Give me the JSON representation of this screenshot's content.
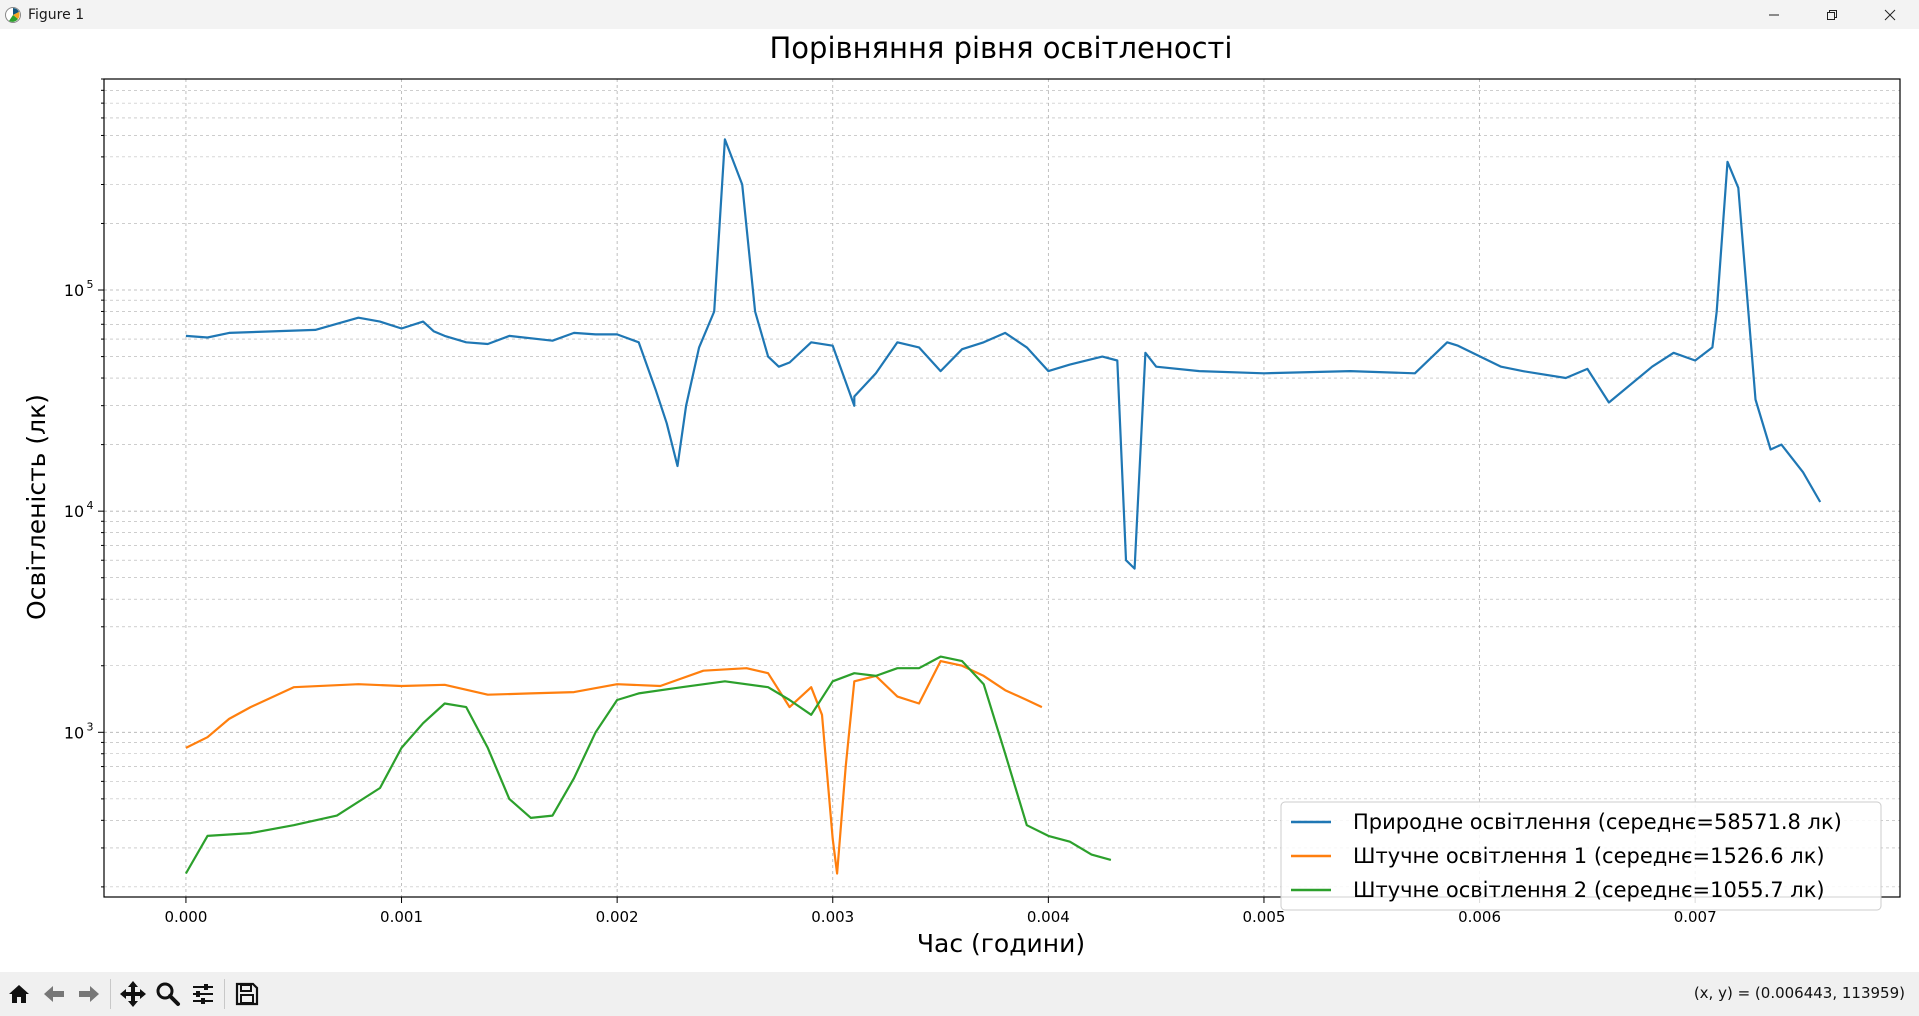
{
  "window": {
    "title": "Figure 1"
  },
  "toolbar": {
    "buttons": [
      "home-icon",
      "back-icon",
      "forward-icon",
      "pan-icon",
      "zoom-icon",
      "configure-icon",
      "save-icon"
    ],
    "coords_text": "(x, y) = (0.006443, 113959)"
  },
  "colors": {
    "natural": "#1f77b4",
    "artificial1": "#ff7f0e",
    "artificial2": "#2ca02c",
    "grid": "#b0b0b0"
  },
  "chart_data": {
    "type": "line",
    "title": "Порівняння рівня освітленості",
    "xlabel": "Час (години)",
    "ylabel": "Освітленість (лк)",
    "yscale": "log",
    "xlim": [
      -0.00038,
      0.00795
    ],
    "ylim": [
      180,
      900000
    ],
    "x_ticks": [
      "0.000",
      "0.001",
      "0.002",
      "0.003",
      "0.004",
      "0.005",
      "0.006",
      "0.007"
    ],
    "x_tick_values": [
      0,
      0.001,
      0.002,
      0.003,
      0.004,
      0.005,
      0.006,
      0.007
    ],
    "y_ticks": [
      {
        "base": "10",
        "exp": "3",
        "value": 1000
      },
      {
        "base": "10",
        "exp": "4",
        "value": 10000
      },
      {
        "base": "10",
        "exp": "5",
        "value": 100000
      }
    ],
    "grid": true,
    "legend_position": "lower-right",
    "series": [
      {
        "name": "Природне освітлення (середнє=58571.8 лк)",
        "color": "#1f77b4",
        "x": [
          0,
          0.0001,
          0.0002,
          0.0004,
          0.0006,
          0.0008,
          0.0009,
          0.001,
          0.0011,
          0.00115,
          0.0012,
          0.0013,
          0.0014,
          0.0015,
          0.0017,
          0.0018,
          0.0019,
          0.002,
          0.0021,
          0.00218,
          0.00223,
          0.00228,
          0.00232,
          0.00238,
          0.00245,
          0.0025,
          0.00258,
          0.00264,
          0.0027,
          0.00275,
          0.0028,
          0.0029,
          0.003,
          0.0031,
          0.0031,
          0.0032,
          0.0033,
          0.0034,
          0.0035,
          0.0036,
          0.0037,
          0.0038,
          0.0039,
          0.004,
          0.0041,
          0.00425,
          0.00432,
          0.00436,
          0.0044,
          0.00445,
          0.0045,
          0.0047,
          0.005,
          0.0054,
          0.0057,
          0.00585,
          0.0059,
          0.0061,
          0.0062,
          0.0064,
          0.0065,
          0.0066,
          0.0068,
          0.0069,
          0.007,
          0.00708,
          0.0071,
          0.00715,
          0.0072,
          0.00728,
          0.00735,
          0.0074,
          0.0075,
          0.00758
        ],
        "values": [
          62000,
          61000,
          64000,
          65000,
          66000,
          75000,
          72000,
          67000,
          72000,
          65000,
          62000,
          58000,
          57000,
          62000,
          59000,
          64000,
          63000,
          63000,
          58000,
          35000,
          25000,
          16000,
          30000,
          55000,
          80000,
          480000,
          300000,
          80000,
          50000,
          45000,
          47000,
          58000,
          56000,
          30000,
          33000,
          42000,
          58000,
          55000,
          43000,
          54000,
          58000,
          64000,
          55000,
          43000,
          46000,
          50000,
          48000,
          6000,
          5500,
          52000,
          45000,
          43000,
          42000,
          43000,
          42000,
          58000,
          56000,
          45000,
          43000,
          40000,
          44000,
          31000,
          45000,
          52000,
          48000,
          55000,
          80000,
          380000,
          290000,
          32000,
          19000,
          20000,
          15000,
          11000
        ]
      },
      {
        "name": "Штучне освітлення 1 (середнє=1526.6 лк)",
        "color": "#ff7f0e",
        "x": [
          0,
          0.0001,
          0.0002,
          0.0003,
          0.0005,
          0.0008,
          0.001,
          0.0012,
          0.0014,
          0.0016,
          0.0018,
          0.002,
          0.0022,
          0.0024,
          0.0026,
          0.0027,
          0.0028,
          0.0029,
          0.00295,
          0.003,
          0.00302,
          0.00306,
          0.0031,
          0.0032,
          0.0033,
          0.0034,
          0.0035,
          0.0036,
          0.0037,
          0.0038,
          0.0039,
          0.00397
        ],
        "values": [
          850,
          950,
          1150,
          1300,
          1600,
          1650,
          1620,
          1640,
          1480,
          1500,
          1520,
          1650,
          1620,
          1900,
          1950,
          1850,
          1300,
          1600,
          1200,
          330,
          230,
          700,
          1700,
          1800,
          1450,
          1350,
          2100,
          2000,
          1800,
          1550,
          1400,
          1300
        ]
      },
      {
        "name": "Штучне освітлення 2 (середнє=1055.7 лк)",
        "color": "#2ca02c",
        "x": [
          0,
          0.0001,
          0.0003,
          0.0005,
          0.0007,
          0.0009,
          0.001,
          0.0011,
          0.0012,
          0.0013,
          0.0014,
          0.0015,
          0.0016,
          0.0017,
          0.0018,
          0.0019,
          0.002,
          0.0021,
          0.0023,
          0.0025,
          0.0027,
          0.0028,
          0.0029,
          0.003,
          0.0031,
          0.0032,
          0.0033,
          0.0034,
          0.0035,
          0.0036,
          0.0037,
          0.0038,
          0.0039,
          0.004,
          0.0041,
          0.0042,
          0.00429
        ],
        "values": [
          230,
          340,
          350,
          380,
          420,
          560,
          850,
          1100,
          1350,
          1300,
          850,
          500,
          410,
          420,
          620,
          1000,
          1400,
          1500,
          1600,
          1700,
          1600,
          1400,
          1200,
          1700,
          1850,
          1800,
          1950,
          1950,
          2200,
          2100,
          1650,
          800,
          380,
          340,
          320,
          280,
          265
        ]
      }
    ]
  }
}
